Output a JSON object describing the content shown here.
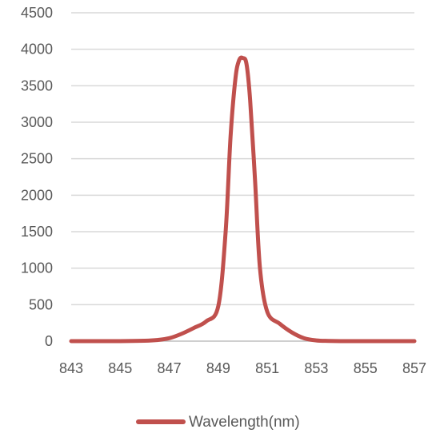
{
  "chart_data": {
    "type": "line",
    "title": "",
    "xlabel": "",
    "ylabel": "",
    "xlim": [
      843,
      857
    ],
    "ylim": [
      0,
      4500
    ],
    "x_ticks": [
      843,
      845,
      847,
      849,
      851,
      853,
      855,
      857
    ],
    "y_ticks": [
      0,
      500,
      1000,
      1500,
      2000,
      2500,
      3000,
      3500,
      4000,
      4500
    ],
    "grid": "horizontal",
    "legend_position": "bottom",
    "series": [
      {
        "name": "Wavelength(nm)",
        "color": "#C0504D",
        "x": [
          843,
          845,
          846,
          846.5,
          847,
          847.5,
          848,
          848.5,
          849,
          849.3,
          849.5,
          849.7,
          849.85,
          850,
          850.15,
          850.3,
          850.5,
          850.7,
          851,
          851.5,
          852,
          852.5,
          853,
          853.5,
          854,
          855,
          857
        ],
        "y": [
          0,
          0,
          5,
          15,
          40,
          100,
          180,
          270,
          480,
          1500,
          2800,
          3600,
          3850,
          3880,
          3800,
          3300,
          2200,
          1000,
          400,
          240,
          120,
          40,
          10,
          3,
          0,
          0,
          0
        ]
      }
    ]
  }
}
